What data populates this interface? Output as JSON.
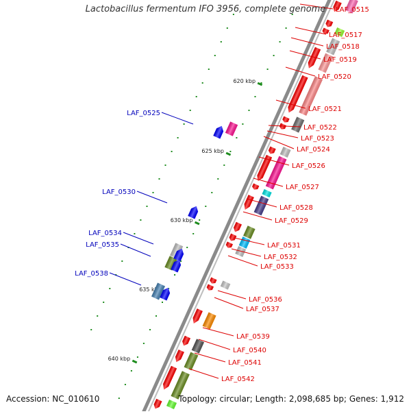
{
  "header": {
    "title": "Lactobacillus fermentum IFO 3956, complete genome"
  },
  "footer": {
    "accession": "Accession: NC_010610",
    "summary": "Topology: circular; Length: 2,098,685 bp; Genes: 1,912"
  },
  "colors": {
    "backbone": "#8a8a8a",
    "tick": "#1e8c1e",
    "forward_label": "#0000bb",
    "reverse_label": "#dd0000",
    "red": "#ff0000",
    "blue": "#0000ff"
  },
  "ruler": {
    "ticks": [
      "620 kbp",
      "625 kbp",
      "630 kbp",
      "635 kbp",
      "640 kbp"
    ]
  },
  "genes_forward": [
    {
      "label": "LAF_0525",
      "color": "#0000ff"
    },
    {
      "label": "LAF_0530",
      "color": "#0000ff"
    },
    {
      "label": "LAF_0534",
      "color": "#0000ff"
    },
    {
      "label": "LAF_0535",
      "color": "#0000ff"
    },
    {
      "label": "LAF_0538",
      "color": "#0000ff"
    }
  ],
  "genes_reverse": [
    {
      "label": "LAF_0515"
    },
    {
      "label": "LAF_0517"
    },
    {
      "label": "LAF_0518"
    },
    {
      "label": "LAF_0519"
    },
    {
      "label": "LAF_0520"
    },
    {
      "label": "LAF_0521"
    },
    {
      "label": "LAF_0522"
    },
    {
      "label": "LAF_0523"
    },
    {
      "label": "LAF_0524"
    },
    {
      "label": "LAF_0526"
    },
    {
      "label": "LAF_0527"
    },
    {
      "label": "LAF_0528"
    },
    {
      "label": "LAF_0529"
    },
    {
      "label": "LAF_0531"
    },
    {
      "label": "LAF_0532"
    },
    {
      "label": "LAF_0533"
    },
    {
      "label": "LAF_0536"
    },
    {
      "label": "LAF_0537"
    },
    {
      "label": "LAF_0539"
    },
    {
      "label": "LAF_0540"
    },
    {
      "label": "LAF_0541"
    },
    {
      "label": "LAF_0542"
    }
  ]
}
